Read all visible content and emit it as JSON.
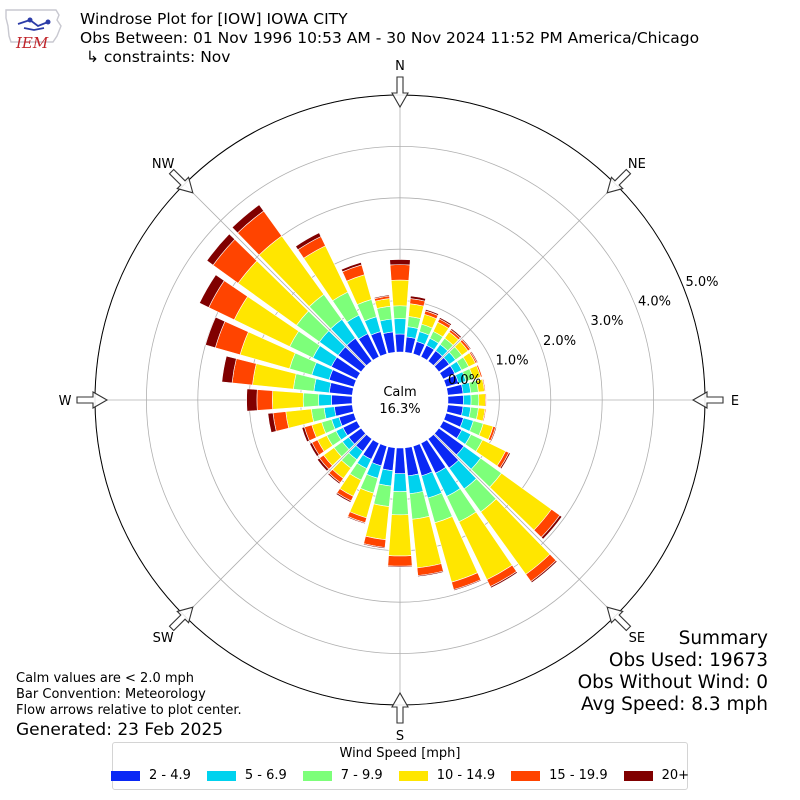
{
  "header": {
    "title": "Windrose Plot for [IOW] IOWA CITY",
    "obs_between": "Obs Between: 01 Nov 1996 10:53 AM - 30 Nov 2024 11:52 PM America/Chicago",
    "constraints": "↳ constraints: Nov"
  },
  "logo": {
    "text": "IEM"
  },
  "summary": {
    "heading": "Summary",
    "obs_used": "Obs Used: 19673",
    "obs_without_wind": "Obs Without Wind: 0",
    "avg_speed": "Avg Speed: 8.3 mph"
  },
  "notes": {
    "calm_values": "Calm values are < 2.0 mph",
    "bar_convention": "Bar Convention: Meteorology",
    "flow_arrows": "Flow arrows relative to plot center.",
    "generated": "Generated: 23 Feb 2025"
  },
  "center": {
    "label": "Calm",
    "value": "16.3%"
  },
  "legend": {
    "title": "Wind Speed [mph]",
    "items": [
      {
        "label": "2 - 4.9",
        "color": "#0a28f5"
      },
      {
        "label": "5 - 6.9",
        "color": "#00d2ee"
      },
      {
        "label": "7 - 9.9",
        "color": "#7dff7a"
      },
      {
        "label": "10 - 14.9",
        "color": "#ffe600"
      },
      {
        "label": "15 - 19.9",
        "color": "#ff4400"
      },
      {
        "label": "20+",
        "color": "#800000"
      }
    ]
  },
  "chart_data": {
    "type": "windrose",
    "title": "Windrose Plot for [IOW] IOWA CITY",
    "direction_labels": [
      "N",
      "NE",
      "E",
      "SE",
      "S",
      "SW",
      "W",
      "NW"
    ],
    "radial_ticks": [
      "0.0%",
      "1.0%",
      "2.0%",
      "3.0%",
      "4.0%",
      "5.0%"
    ],
    "radial_range_percent": [
      0,
      5
    ],
    "calm_percent": 16.3,
    "speed_bins": [
      "2 - 4.9",
      "5 - 6.9",
      "7 - 9.9",
      "10 - 14.9",
      "15 - 19.9",
      "20+"
    ],
    "colors": [
      "#0a28f5",
      "#00d2ee",
      "#7dff7a",
      "#ffe600",
      "#ff4400",
      "#800000"
    ],
    "directions_deg": [
      0,
      10,
      20,
      30,
      40,
      50,
      60,
      70,
      80,
      90,
      100,
      110,
      120,
      130,
      140,
      150,
      160,
      170,
      180,
      190,
      200,
      210,
      220,
      230,
      240,
      250,
      260,
      270,
      280,
      290,
      300,
      310,
      320,
      330,
      340,
      350
    ],
    "cumulative_percent": [
      [
        0.35,
        0.65,
        0.9,
        1.4,
        1.7,
        1.8
      ],
      [
        0.3,
        0.5,
        0.7,
        0.95,
        1.05,
        1.1
      ],
      [
        0.25,
        0.45,
        0.6,
        0.8,
        0.87,
        0.9
      ],
      [
        0.25,
        0.4,
        0.55,
        0.75,
        0.82,
        0.85
      ],
      [
        0.25,
        0.4,
        0.55,
        0.7,
        0.75,
        0.78
      ],
      [
        0.25,
        0.4,
        0.55,
        0.7,
        0.75,
        0.77
      ],
      [
        0.25,
        0.4,
        0.55,
        0.7,
        0.73,
        0.75
      ],
      [
        0.25,
        0.4,
        0.55,
        0.7,
        0.73,
        0.74
      ],
      [
        0.3,
        0.45,
        0.6,
        0.72,
        0.74,
        0.75
      ],
      [
        0.3,
        0.45,
        0.6,
        0.73,
        0.75,
        0.76
      ],
      [
        0.3,
        0.45,
        0.6,
        0.73,
        0.75,
        0.76
      ],
      [
        0.35,
        0.55,
        0.75,
        0.95,
        1.0,
        1.02
      ],
      [
        0.4,
        0.6,
        0.85,
        1.35,
        1.42,
        1.45
      ],
      [
        0.6,
        1.0,
        1.5,
        2.7,
        2.9,
        2.95
      ],
      [
        0.7,
        1.2,
        1.75,
        3.25,
        3.42,
        3.45
      ],
      [
        0.65,
        1.15,
        1.7,
        2.95,
        3.1,
        3.13
      ],
      [
        0.6,
        1.05,
        1.55,
        2.75,
        2.9,
        2.92
      ],
      [
        0.55,
        0.9,
        1.4,
        2.35,
        2.5,
        2.52
      ],
      [
        0.5,
        0.85,
        1.3,
        2.1,
        2.3,
        2.32
      ],
      [
        0.45,
        0.75,
        1.15,
        1.8,
        1.95,
        1.97
      ],
      [
        0.4,
        0.65,
        0.95,
        1.45,
        1.55,
        1.57
      ],
      [
        0.35,
        0.55,
        0.8,
        1.15,
        1.25,
        1.28
      ],
      [
        0.3,
        0.5,
        0.7,
        0.95,
        1.05,
        1.08
      ],
      [
        0.3,
        0.45,
        0.65,
        0.9,
        1.0,
        1.05
      ],
      [
        0.3,
        0.45,
        0.65,
        0.85,
        0.97,
        1.02
      ],
      [
        0.3,
        0.45,
        0.65,
        0.85,
        1.0,
        1.05
      ],
      [
        0.35,
        0.55,
        0.8,
        1.3,
        1.55,
        1.65
      ],
      [
        0.4,
        0.65,
        0.95,
        1.55,
        1.85,
        2.05
      ],
      [
        0.45,
        0.75,
        1.15,
        1.95,
        2.35,
        2.55
      ],
      [
        0.5,
        0.85,
        1.3,
        2.3,
        2.8,
        3.0
      ],
      [
        0.55,
        0.95,
        1.45,
        2.65,
        3.2,
        3.4
      ],
      [
        0.55,
        1.0,
        1.55,
        2.95,
        3.55,
        3.7
      ],
      [
        0.55,
        1.0,
        1.6,
        3.0,
        3.6,
        3.75
      ],
      [
        0.5,
        0.9,
        1.4,
        2.4,
        2.6,
        2.68
      ],
      [
        0.45,
        0.75,
        1.1,
        1.6,
        1.8,
        1.85
      ],
      [
        0.4,
        0.65,
        0.9,
        1.05,
        1.1,
        1.12
      ]
    ]
  }
}
